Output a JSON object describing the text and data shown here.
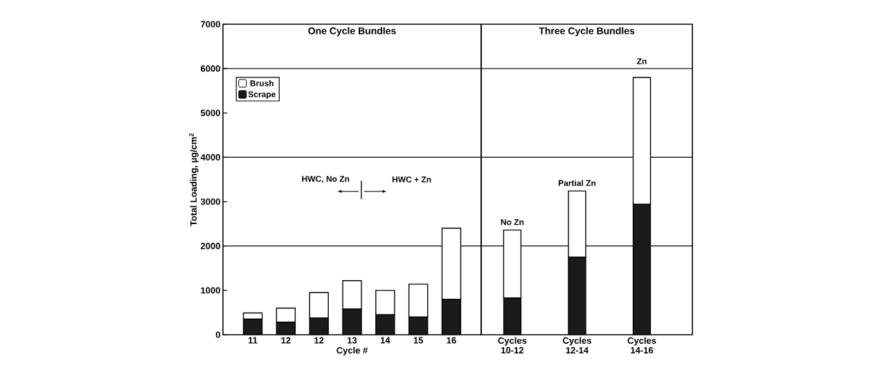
{
  "chart_data": [
    {
      "type": "bar",
      "title": "One Cycle Bundles",
      "xlabel": "Cycle #",
      "ylabel": "Total Loading, µg/cm$^{2}$",
      "categories": [
        "11",
        "12",
        "12",
        "13",
        "14",
        "15",
        "16"
      ],
      "stacked": true,
      "ylim": [
        0,
        7000
      ],
      "yticks": [
        0,
        1000,
        2000,
        3000,
        4000,
        5000,
        6000,
        7000
      ],
      "legend": "top left",
      "series": [
        {
          "name": "Scrape",
          "color": "#1a1a1a",
          "values": [
            350,
            280,
            380,
            580,
            450,
            400,
            800
          ]
        },
        {
          "name": "Brush",
          "color": "#ffffff",
          "values": [
            140,
            320,
            570,
            640,
            550,
            740,
            1600
          ]
        }
      ],
      "ref_lines": [
        {
          "axis": "y",
          "value": 2000
        },
        {
          "axis": "y",
          "value": 4000
        },
        {
          "axis": "y",
          "value": 6000
        }
      ],
      "annotations": [
        "HWC, No Zn",
        "HWC + Zn"
      ]
    },
    {
      "type": "bar",
      "title": "Three Cycle Bundles",
      "categories": [
        "Cycles 10-12",
        "Cycles 12-14",
        "Cycles 14-16"
      ],
      "stacked": true,
      "ylim": [
        0,
        7000
      ],
      "yticks": [
        0,
        1000,
        2000,
        3000,
        4000,
        5000,
        6000,
        7000
      ],
      "tick_labels": "x",
      "series": [
        {
          "color": "#1a1a1a",
          "values": [
            830,
            1750,
            2940
          ]
        },
        {
          "color": "#ffffff",
          "values": [
            1530,
            1490,
            2860
          ]
        }
      ],
      "ref_lines": [
        {
          "axis": "y",
          "value": 2000
        },
        {
          "axis": "y",
          "value": 4000
        },
        {
          "axis": "y",
          "value": 6000
        }
      ],
      "annotations": [
        {
          "text": "No Zn",
          "x": "Cycles 10-12",
          "y": 2360
        },
        {
          "text": "Partial Zn",
          "x": "Cycles 12-14",
          "y": 3240
        },
        {
          "text": "Zn",
          "x": "Cycles 14-16",
          "y": 5800
        }
      ]
    }
  ]
}
